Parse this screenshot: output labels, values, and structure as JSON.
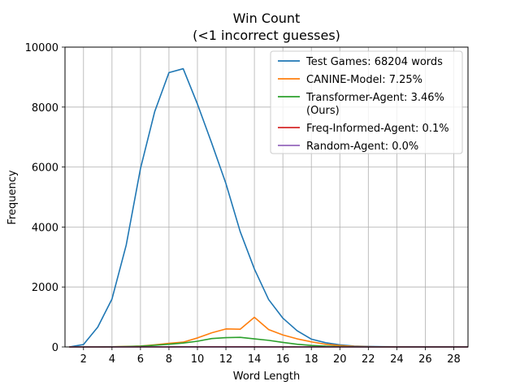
{
  "chart_data": {
    "type": "line",
    "title": "Win Count",
    "subtitle": "(<1 incorrect guesses)",
    "xlabel": "Word Length",
    "ylabel": "Frequency",
    "xlim": [
      0.7,
      29
    ],
    "ylim": [
      0,
      10000
    ],
    "x_ticks": [
      2,
      4,
      6,
      8,
      10,
      12,
      14,
      16,
      18,
      20,
      22,
      24,
      26,
      28
    ],
    "y_ticks": [
      0,
      2000,
      4000,
      6000,
      8000,
      10000
    ],
    "grid": true,
    "legend_position": "top-right",
    "x": [
      1,
      2,
      3,
      4,
      5,
      6,
      7,
      8,
      9,
      10,
      11,
      12,
      13,
      14,
      15,
      16,
      17,
      18,
      19,
      20,
      21,
      22,
      23,
      24,
      25,
      26,
      27,
      28,
      29
    ],
    "series": [
      {
        "name": "Test Games: 68204 words",
        "color": "#1f77b4",
        "values": [
          0,
          80,
          660,
          1600,
          3400,
          5950,
          7850,
          9150,
          9280,
          8100,
          6800,
          5450,
          3850,
          2600,
          1580,
          960,
          540,
          260,
          140,
          70,
          30,
          15,
          8,
          5,
          3,
          2,
          1,
          1,
          0
        ]
      },
      {
        "name": "CANINE-Model: 7.25%",
        "color": "#ff7f0e",
        "values": [
          0,
          0,
          0,
          5,
          15,
          30,
          70,
          120,
          160,
          300,
          470,
          600,
          590,
          990,
          580,
          400,
          270,
          170,
          90,
          45,
          20,
          8,
          3,
          1,
          0,
          0,
          0,
          0,
          0
        ]
      },
      {
        "name": "Transformer-Agent: 3.46%\n(Ours)",
        "color": "#2ca02c",
        "values": [
          0,
          0,
          0,
          5,
          12,
          25,
          55,
          90,
          130,
          190,
          280,
          310,
          320,
          270,
          220,
          150,
          90,
          50,
          25,
          12,
          5,
          2,
          1,
          0,
          0,
          0,
          0,
          0,
          0
        ]
      },
      {
        "name": "Freq-Informed-Agent: 0.1%",
        "color": "#d62728",
        "values": [
          0,
          0,
          0,
          0,
          0,
          1,
          2,
          3,
          4,
          5,
          6,
          6,
          5,
          4,
          3,
          2,
          1,
          1,
          0,
          0,
          0,
          0,
          0,
          0,
          0,
          0,
          0,
          0,
          0
        ]
      },
      {
        "name": "Random-Agent: 0.0%",
        "color": "#9467bd",
        "values": [
          0,
          0,
          0,
          0,
          0,
          0,
          0,
          0,
          0,
          0,
          0,
          0,
          0,
          0,
          0,
          0,
          0,
          0,
          0,
          0,
          0,
          0,
          0,
          0,
          0,
          0,
          0,
          0,
          0
        ]
      }
    ]
  }
}
